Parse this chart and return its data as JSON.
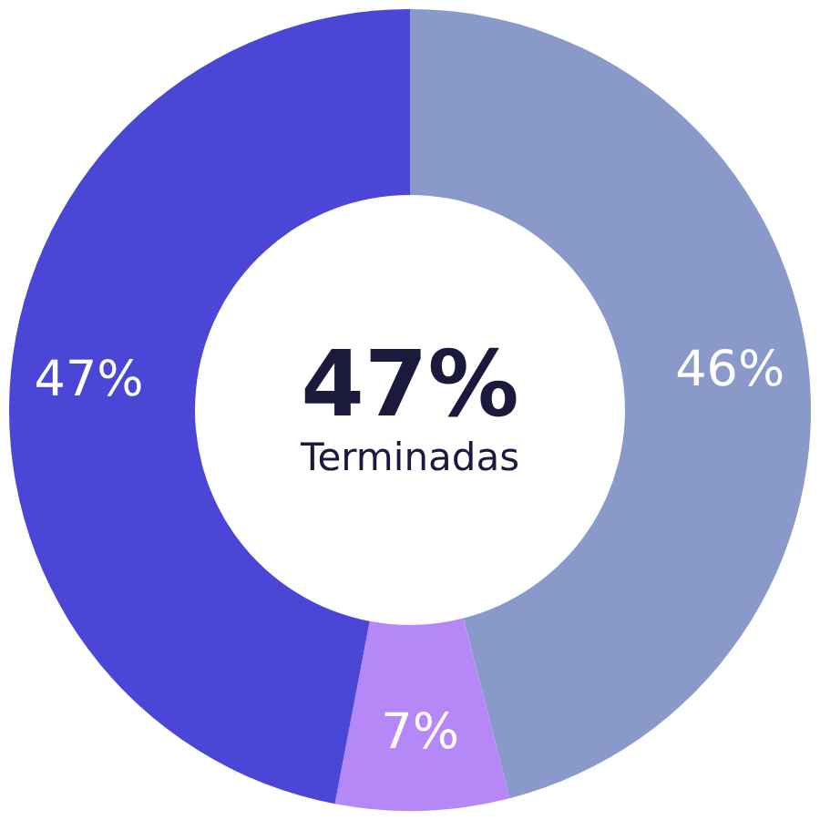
{
  "chart_data": {
    "type": "donut",
    "categories": [
      null,
      null,
      null
    ],
    "values": [
      46,
      7,
      47
    ],
    "colors": [
      "#8999c9",
      "#b587f7",
      "#4b47d6"
    ],
    "value_labels": [
      "46%",
      "7%",
      "47%"
    ],
    "annotations": [
      "47%",
      "Terminadas"
    ]
  }
}
